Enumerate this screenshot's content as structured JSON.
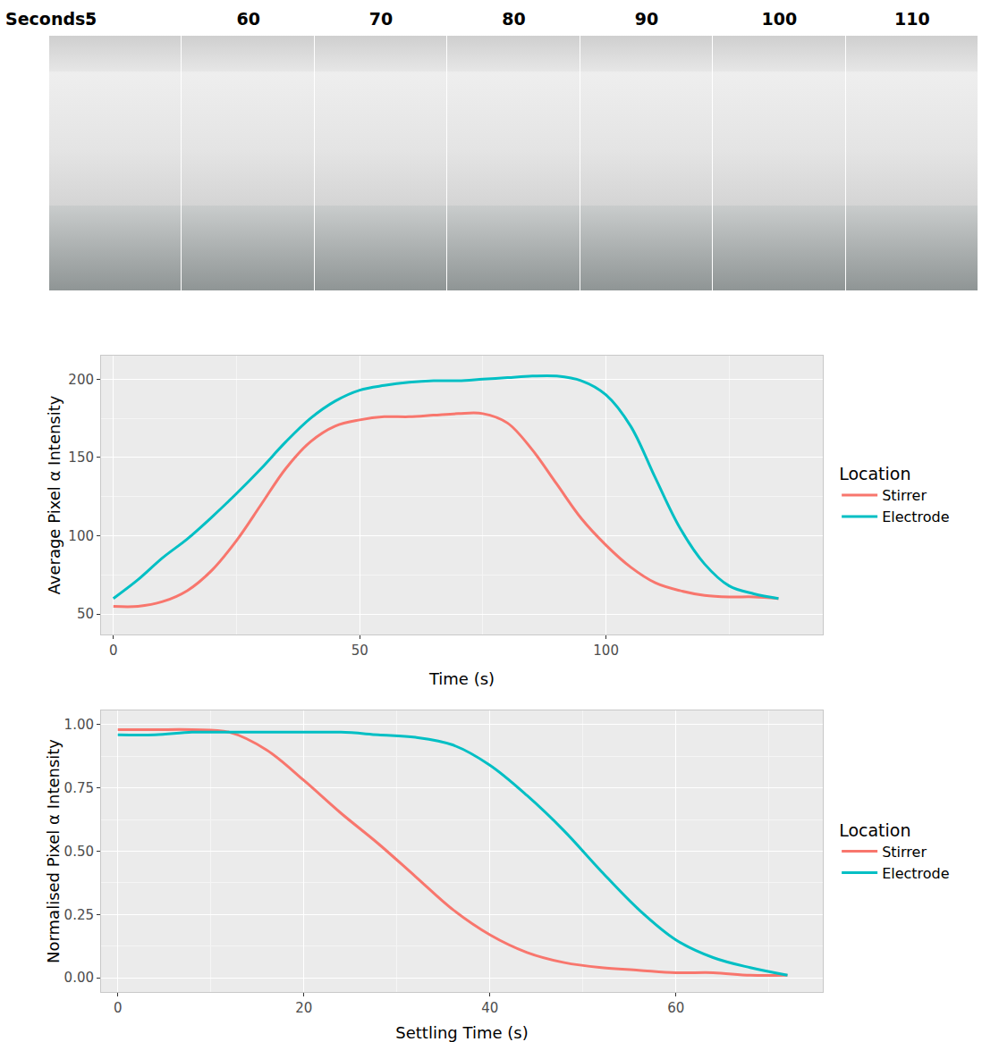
{
  "photo_strip": {
    "label": "Seconds:",
    "times": [
      5,
      60,
      70,
      80,
      90,
      100,
      110
    ]
  },
  "chart_data": [
    {
      "type": "line",
      "x_label": "Time (s)",
      "y_label": "Average Pixel α Intensity",
      "legend_title": "Location",
      "legend": "right",
      "grid": true,
      "x": [
        0,
        5,
        10,
        15,
        20,
        25,
        30,
        35,
        40,
        45,
        50,
        55,
        60,
        65,
        70,
        75,
        80,
        85,
        90,
        95,
        100,
        105,
        110,
        115,
        120,
        125,
        130,
        135
      ],
      "series": [
        {
          "name": "Stirrer",
          "color": "#F8766D",
          "line_style": "solid",
          "values": [
            55,
            55,
            58,
            65,
            78,
            97,
            120,
            143,
            160,
            170,
            174,
            176,
            176,
            177,
            178,
            178,
            172,
            155,
            133,
            111,
            94,
            80,
            70,
            65,
            62,
            61,
            61,
            60
          ]
        },
        {
          "name": "Electrode",
          "color": "#00BFC4",
          "line_style": "solid",
          "values": [
            60,
            72,
            86,
            98,
            112,
            127,
            143,
            160,
            175,
            186,
            193,
            196,
            198,
            199,
            199,
            200,
            201,
            202,
            202,
            199,
            190,
            170,
            137,
            105,
            82,
            68,
            63,
            60
          ]
        }
      ],
      "xlim": [
        -2.5,
        144
      ],
      "xticks": [
        0,
        50,
        100
      ],
      "ylim": [
        37,
        215
      ],
      "yticks": [
        50,
        100,
        150,
        200
      ]
    },
    {
      "type": "line",
      "x_label": "Settling Time (s)",
      "y_label": "Normalised Pixel α Intensity",
      "legend_title": "Location",
      "legend": "right",
      "grid": true,
      "x": [
        0,
        4,
        8,
        12,
        16,
        20,
        24,
        28,
        32,
        36,
        40,
        44,
        48,
        52,
        56,
        60,
        64,
        68,
        72
      ],
      "series": [
        {
          "name": "Stirrer",
          "color": "#F8766D",
          "line_style": "solid",
          "values": [
            0.98,
            0.98,
            0.98,
            0.97,
            0.9,
            0.78,
            0.65,
            0.53,
            0.4,
            0.27,
            0.17,
            0.1,
            0.06,
            0.04,
            0.03,
            0.02,
            0.02,
            0.01,
            0.01
          ]
        },
        {
          "name": "Electrode",
          "color": "#00BFC4",
          "line_style": "solid",
          "values": [
            0.96,
            0.96,
            0.97,
            0.97,
            0.97,
            0.97,
            0.97,
            0.96,
            0.95,
            0.92,
            0.84,
            0.72,
            0.58,
            0.42,
            0.27,
            0.15,
            0.08,
            0.04,
            0.01
          ]
        }
      ],
      "xlim": [
        -1.8,
        75.8
      ],
      "xticks": [
        0,
        20,
        40,
        60
      ],
      "ylim": [
        -0.056,
        1.056
      ],
      "yticks": [
        {
          "value": 0,
          "label": "0.00"
        },
        0.25,
        {
          "value": 0.5,
          "label": "0.50"
        },
        0.75,
        {
          "value": 1,
          "label": "1.00"
        }
      ]
    }
  ]
}
